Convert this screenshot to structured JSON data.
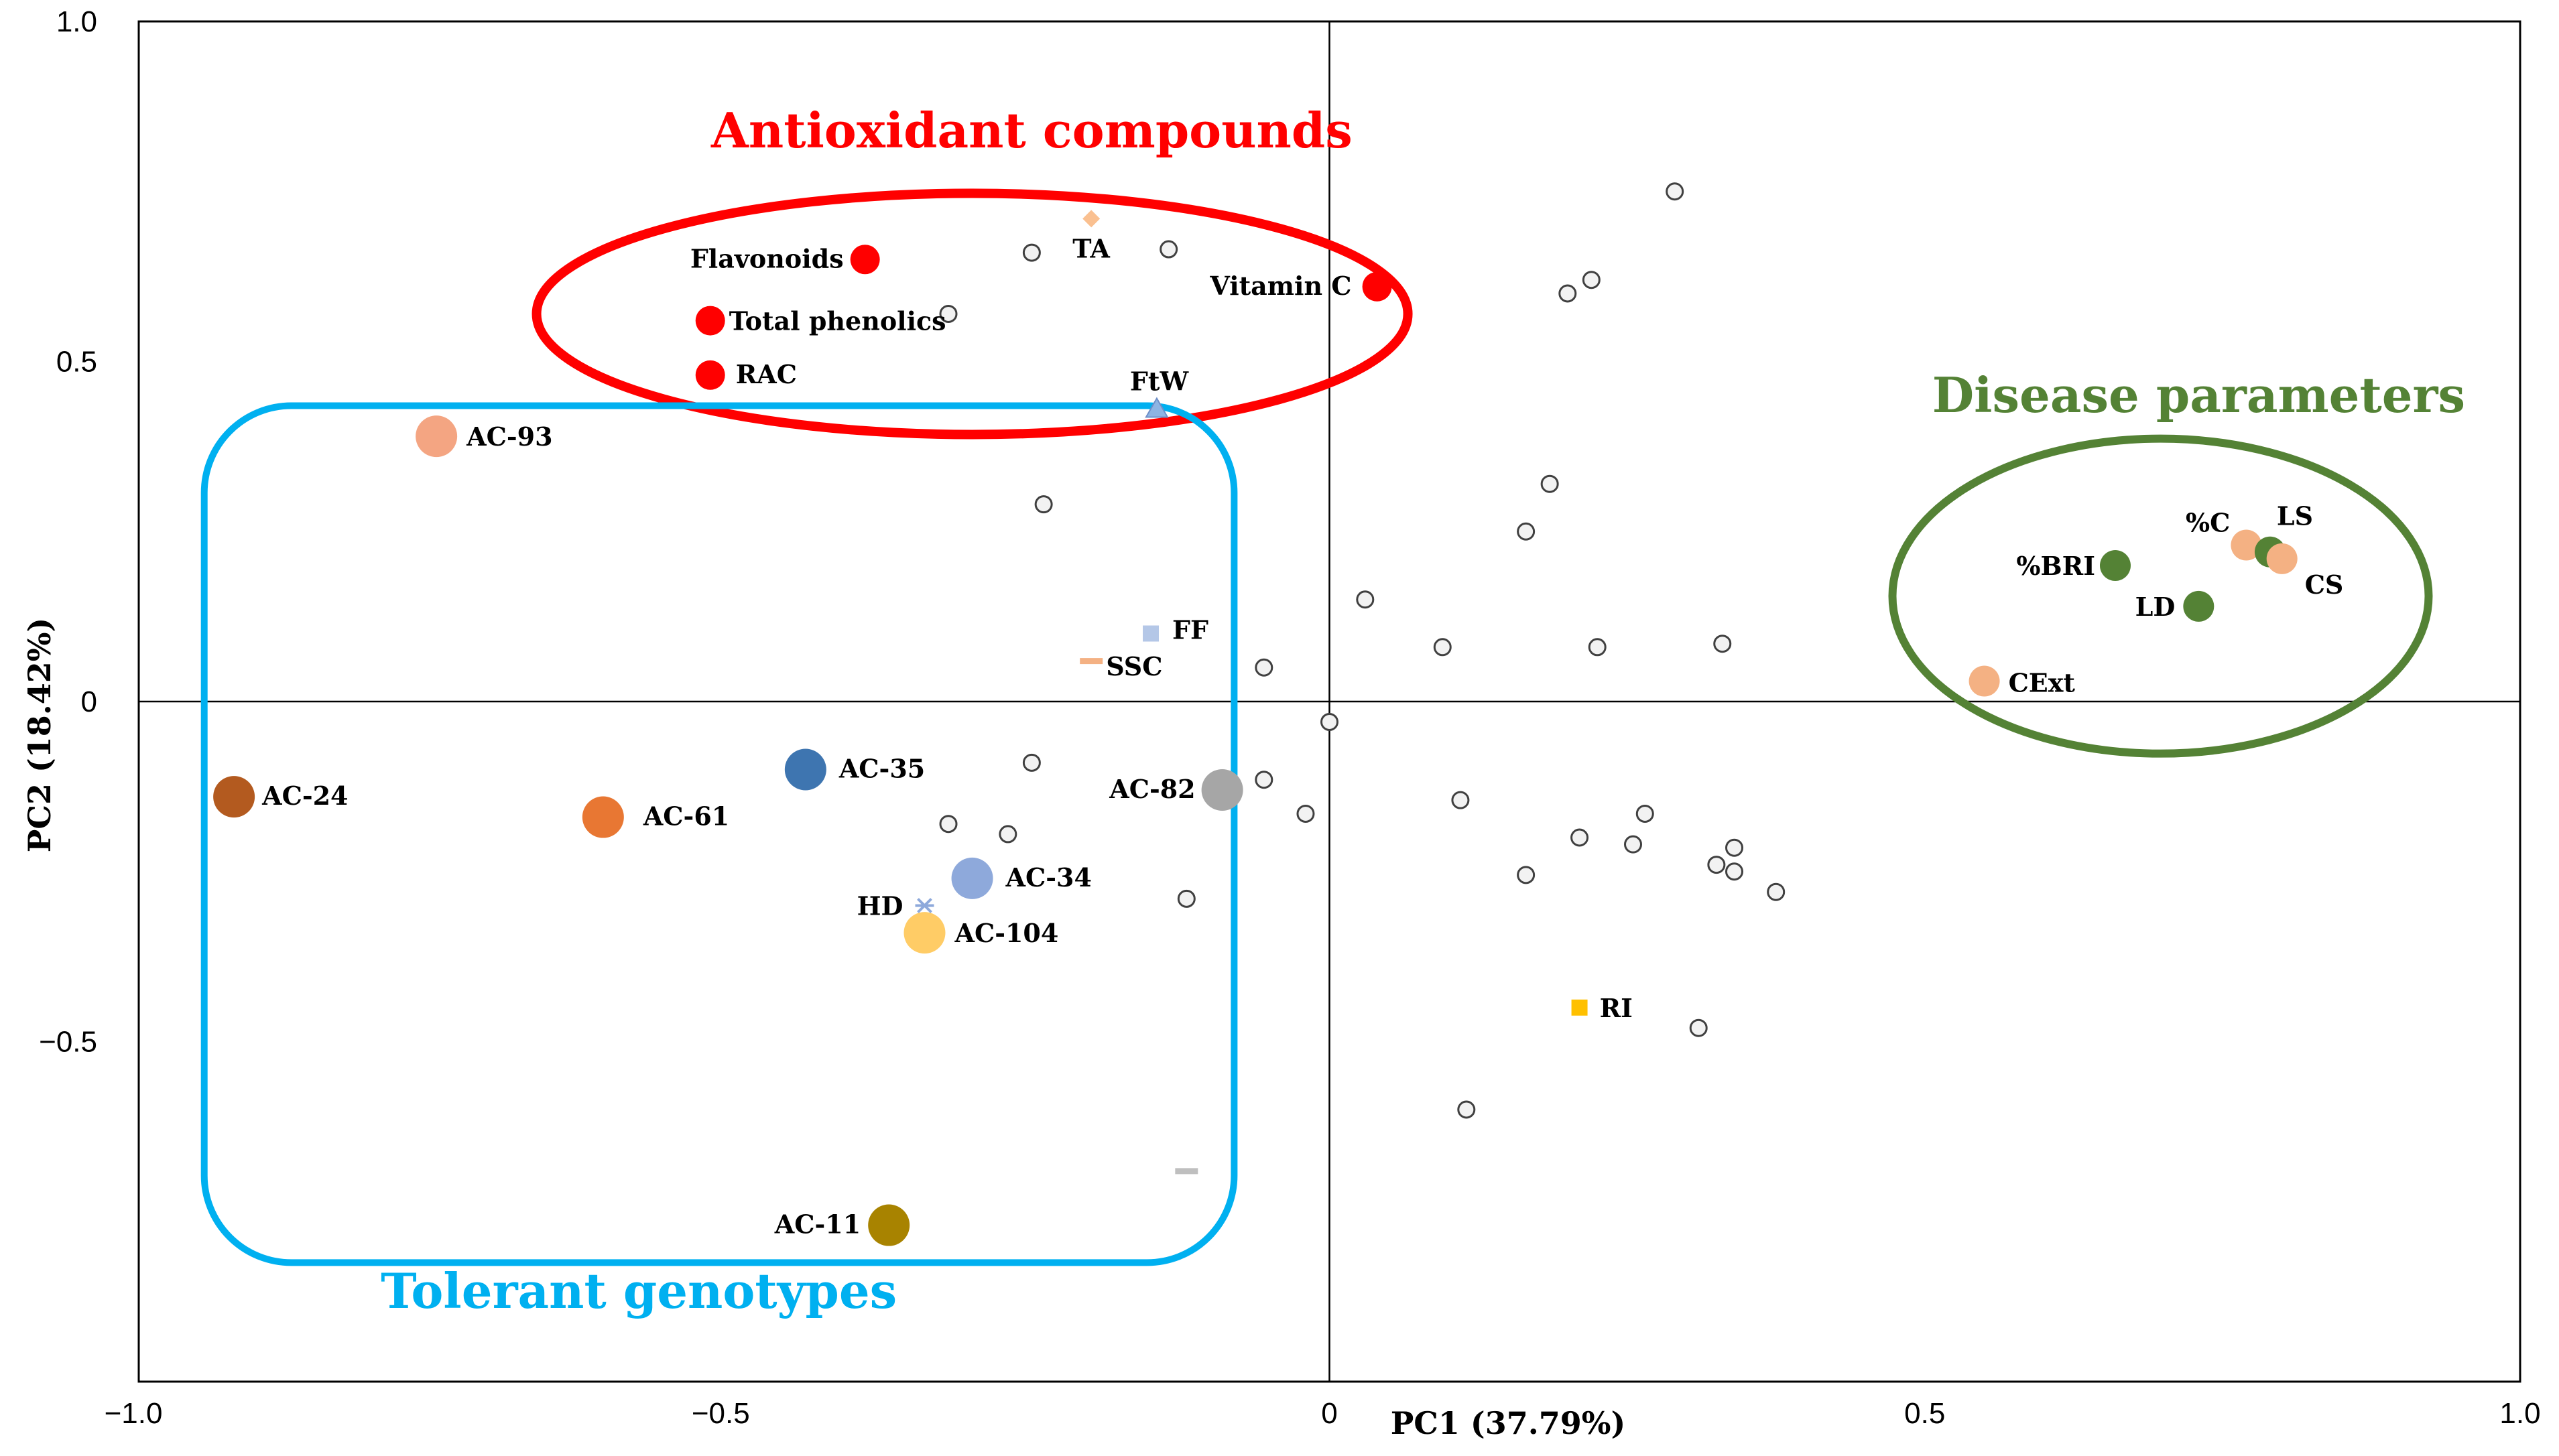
{
  "chart_data": {
    "type": "scatter",
    "title": "",
    "xlabel": "PC1 (37.79%)",
    "ylabel": "PC2 (18.42%)",
    "xlim": [
      -1.0,
      1.0
    ],
    "ylim": [
      -1.0,
      1.0
    ],
    "x_ticks": [
      "−1.0",
      "−0.5",
      "0",
      "0.5",
      "1.0"
    ],
    "y_ticks": [
      "1.0",
      "0.5",
      "0",
      "−0.5"
    ],
    "grid": false,
    "genotypes": [
      {
        "name": "AC-93",
        "x": -0.75,
        "y": 0.39,
        "color": "#F4A582"
      },
      {
        "name": "AC-24",
        "x": -0.92,
        "y": -0.14,
        "color": "#B35A1F"
      },
      {
        "name": "AC-61",
        "x": -0.61,
        "y": -0.17,
        "color": "#E87733"
      },
      {
        "name": "AC-35",
        "x": -0.44,
        "y": -0.1,
        "color": "#3E75B0"
      },
      {
        "name": "AC-34",
        "x": -0.3,
        "y": -0.26,
        "color": "#8EA9DB"
      },
      {
        "name": "AC-104",
        "x": -0.34,
        "y": -0.34,
        "color": "#FFCC66"
      },
      {
        "name": "AC-82",
        "x": -0.09,
        "y": -0.13,
        "color": "#A6A6A6"
      },
      {
        "name": "AC-11",
        "x": -0.37,
        "y": -0.77,
        "color": "#A88300"
      }
    ],
    "antioxidant_variables": [
      {
        "name": "Flavonoids",
        "x": -0.39,
        "y": 0.65,
        "color": "#FF0000"
      },
      {
        "name": "Total phenolics",
        "x": -0.52,
        "y": 0.56,
        "color": "#FF0000"
      },
      {
        "name": "RAC",
        "x": -0.52,
        "y": 0.48,
        "color": "#FF0000"
      },
      {
        "name": "Vitamin C",
        "x": 0.04,
        "y": 0.61,
        "color": "#FF0000"
      }
    ],
    "disease_variables": [
      {
        "name": "%C",
        "x": 0.77,
        "y": 0.23,
        "color": "#F4B183"
      },
      {
        "name": "LS",
        "x": 0.79,
        "y": 0.22,
        "color": "#548235"
      },
      {
        "name": "CS",
        "x": 0.8,
        "y": 0.21,
        "color": "#F4B183"
      },
      {
        "name": "%BRI",
        "x": 0.66,
        "y": 0.2,
        "color": "#548235"
      },
      {
        "name": "LD",
        "x": 0.73,
        "y": 0.14,
        "color": "#548235"
      },
      {
        "name": "CExt",
        "x": 0.55,
        "y": 0.03,
        "color": "#F4B183"
      }
    ],
    "other_variables": [
      {
        "name": "TA",
        "x": -0.2,
        "y": 0.71,
        "marker": "diamond",
        "color": "#FAC090"
      },
      {
        "name": "FtW",
        "x": -0.145,
        "y": 0.43,
        "marker": "triangle",
        "color": "#8EB4E3"
      },
      {
        "name": "FF",
        "x": -0.15,
        "y": 0.1,
        "marker": "square",
        "color": "#B4C7E7"
      },
      {
        "name": "SSC",
        "x": -0.2,
        "y": 0.06,
        "marker": "dash",
        "color": "#F4B183"
      },
      {
        "name": "HD",
        "x": -0.34,
        "y": -0.3,
        "marker": "asterisk",
        "color": "#8EA9DB"
      },
      {
        "name": "RI",
        "x": 0.21,
        "y": -0.45,
        "marker": "square",
        "color": "#FFC000"
      }
    ],
    "unlabeled_markers": [
      {
        "x": -0.12,
        "y": -0.69,
        "marker": "dash",
        "color": "#BFBFBF"
      }
    ],
    "samples": [
      {
        "x": -0.25,
        "y": 0.66
      },
      {
        "x": -0.135,
        "y": 0.665
      },
      {
        "x": -0.32,
        "y": 0.57
      },
      {
        "x": 0.29,
        "y": 0.75
      },
      {
        "x": 0.2,
        "y": 0.6
      },
      {
        "x": 0.22,
        "y": 0.62
      },
      {
        "x": -0.24,
        "y": 0.29
      },
      {
        "x": 0.185,
        "y": 0.32
      },
      {
        "x": 0.165,
        "y": 0.25
      },
      {
        "x": 0.03,
        "y": 0.15
      },
      {
        "x": 0.095,
        "y": 0.08
      },
      {
        "x": 0.225,
        "y": 0.08
      },
      {
        "x": 0.33,
        "y": 0.085
      },
      {
        "x": -0.055,
        "y": 0.05
      },
      {
        "x": 0.0,
        "y": -0.03
      },
      {
        "x": -0.25,
        "y": -0.09
      },
      {
        "x": -0.055,
        "y": -0.115
      },
      {
        "x": -0.32,
        "y": -0.18
      },
      {
        "x": -0.27,
        "y": -0.195
      },
      {
        "x": -0.02,
        "y": -0.165
      },
      {
        "x": 0.11,
        "y": -0.145
      },
      {
        "x": 0.265,
        "y": -0.165
      },
      {
        "x": 0.21,
        "y": -0.2
      },
      {
        "x": 0.255,
        "y": -0.21
      },
      {
        "x": 0.34,
        "y": -0.215
      },
      {
        "x": 0.325,
        "y": -0.24
      },
      {
        "x": 0.34,
        "y": -0.25
      },
      {
        "x": 0.375,
        "y": -0.28
      },
      {
        "x": 0.165,
        "y": -0.255
      },
      {
        "x": -0.12,
        "y": -0.29
      },
      {
        "x": 0.31,
        "y": -0.48
      },
      {
        "x": 0.115,
        "y": -0.6
      }
    ],
    "groups": [
      {
        "name": "Antioxidant compounds",
        "color": "#FF0000"
      },
      {
        "name": "Disease parameters",
        "color": "#548235"
      },
      {
        "name": "Tolerant genotypes",
        "color": "#00B0F0"
      }
    ]
  }
}
